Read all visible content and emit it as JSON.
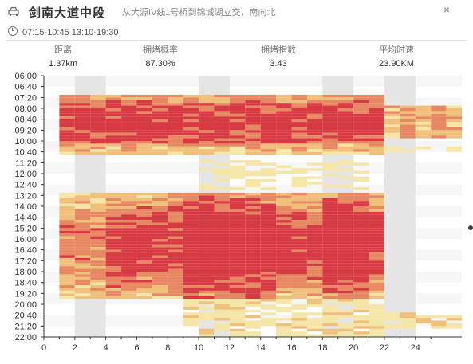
{
  "header": {
    "road_name": "剑南大道中段",
    "description": "从大源IV线1号桥到锦城湖立交，南向北",
    "icon": "car-icon",
    "close": "×"
  },
  "time_ranges": "07:15-10:45  13:10-19:30",
  "stats": [
    {
      "label": "距离",
      "value": "1.37km"
    },
    {
      "label": "拥堵概率",
      "value": "87.30%"
    },
    {
      "label": "拥堵指数",
      "value": "3.43"
    },
    {
      "label": "平均时速",
      "value": "23.90KM"
    }
  ],
  "chart_data": {
    "type": "heatmap",
    "title": "",
    "xlabel": "",
    "ylabel": "",
    "x_ticks": [
      "0",
      "2",
      "4",
      "6",
      "8",
      "10",
      "12",
      "14",
      "16",
      "18",
      "20",
      "22",
      "24"
    ],
    "y_ticks": [
      "06:00",
      "06:40",
      "07:20",
      "08:00",
      "08:40",
      "09:20",
      "10:00",
      "10:40",
      "11:20",
      "12:00",
      "12:40",
      "13:20",
      "14:00",
      "14:40",
      "15:20",
      "16:00",
      "16:40",
      "17:20",
      "18:00",
      "18:40",
      "19:20",
      "20:00",
      "20:40",
      "21:20",
      "22:00"
    ],
    "x_range": [
      0,
      27
    ],
    "y_range": [
      "06:00",
      "22:00"
    ],
    "color_scale": [
      "#f5e6a8",
      "#f0c07a",
      "#e88862",
      "#d83a44"
    ],
    "shaded_columns": [
      2,
      10,
      18,
      22
    ],
    "grid": true
  }
}
